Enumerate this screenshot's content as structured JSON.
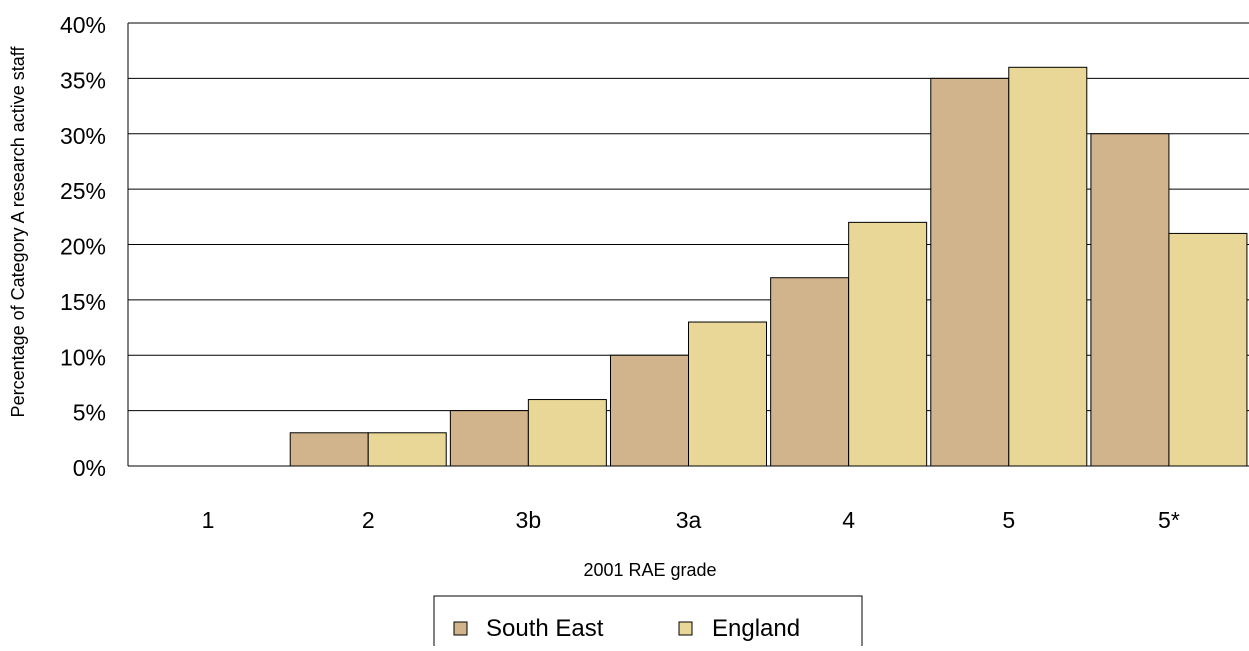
{
  "chart_data": {
    "type": "bar",
    "categories": [
      "1",
      "2",
      "3b",
      "3a",
      "4",
      "5",
      "5*"
    ],
    "series": [
      {
        "name": "South East",
        "values": [
          0,
          3,
          5,
          10,
          17,
          35,
          30
        ]
      },
      {
        "name": "England",
        "values": [
          0,
          3,
          6,
          13,
          22,
          36,
          21
        ]
      }
    ],
    "xlabel": "2001 RAE grade",
    "ylabel": "Percentage of Category A research active staff",
    "ylim": [
      0,
      40
    ],
    "yticks": [
      0,
      5,
      10,
      15,
      20,
      25,
      30,
      35,
      40
    ],
    "ytick_labels": [
      "0%",
      "5%",
      "10%",
      "15%",
      "20%",
      "25%",
      "30%",
      "35%",
      "40%"
    ],
    "grid": true,
    "legend_position": "bottom-center",
    "colors": {
      "South East": "#D2B48C",
      "England": "#E8D796",
      "bar_outline": "#000000",
      "gridline": "#000000",
      "background": "#FFFFFF"
    }
  }
}
